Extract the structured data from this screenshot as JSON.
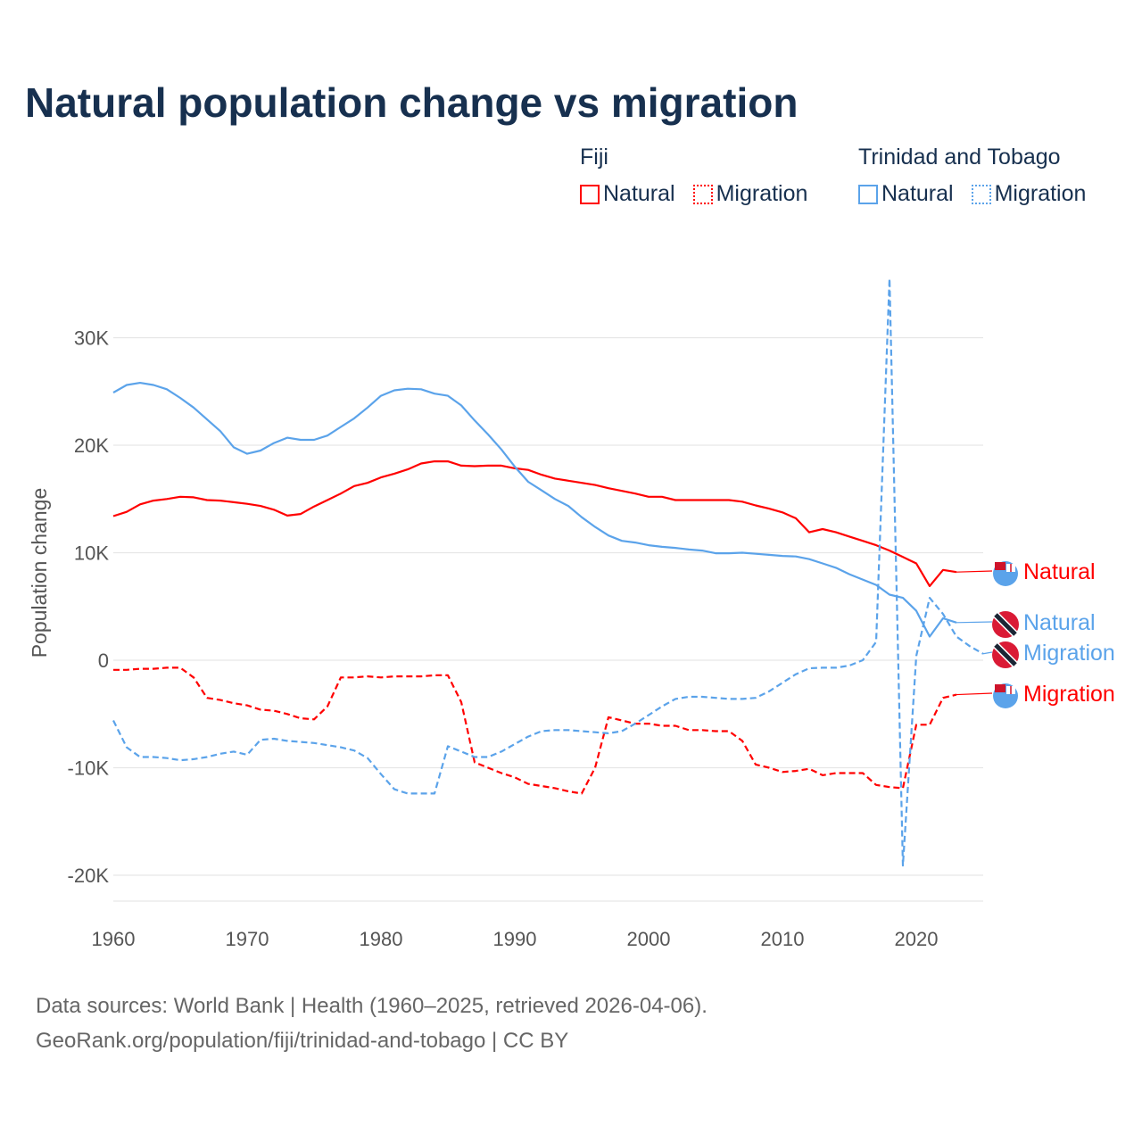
{
  "title": "Natural population change vs migration",
  "legend": {
    "groups": [
      {
        "name": "Fiji",
        "items": [
          "Natural",
          "Migration"
        ],
        "color": "#ff0000"
      },
      {
        "name": "Trinidad and Tobago",
        "items": [
          "Natural",
          "Migration"
        ],
        "color": "#5ba3ea"
      }
    ]
  },
  "source": {
    "line1": "Data sources: World Bank | Health (1960–2025, retrieved 2026-04-06).",
    "line2": "GeoRank.org/population/fiji/trinidad-and-tobago | CC BY"
  },
  "chart_data": {
    "type": "line",
    "title": "Natural population change vs migration",
    "xlabel": "",
    "ylabel": "Population change",
    "xlim": [
      1960,
      2025
    ],
    "ylim": [
      -20000,
      30000
    ],
    "x_ticks": [
      1960,
      1970,
      1980,
      1990,
      2000,
      2010,
      2020
    ],
    "y_ticks": [
      {
        "v": 30000,
        "label": "30K"
      },
      {
        "v": 20000,
        "label": "20K"
      },
      {
        "v": 10000,
        "label": "10K"
      },
      {
        "v": 0,
        "label": "0"
      },
      {
        "v": -10000,
        "label": "-10K"
      },
      {
        "v": -20000,
        "label": "-20K"
      }
    ],
    "grid": true,
    "series": [
      {
        "name": "Fiji Natural",
        "label": "Natural",
        "country": "Fiji",
        "color": "#ff0000",
        "dash": false,
        "start": 1960,
        "values": [
          13400,
          13800,
          14500,
          14850,
          15000,
          15200,
          15150,
          14900,
          14850,
          14700,
          14550,
          14350,
          14000,
          13450,
          13600,
          14300,
          14900,
          15500,
          16200,
          16500,
          17000,
          17350,
          17750,
          18300,
          18500,
          18500,
          18100,
          18050,
          18100,
          18100,
          17850,
          17700,
          17250,
          16900,
          16700,
          16500,
          16300,
          16000,
          15750,
          15500,
          15200,
          15200,
          14900,
          14900,
          14900,
          14900,
          14900,
          14750,
          14400,
          14100,
          13750,
          13200,
          11900,
          12200,
          11900,
          11500,
          11100,
          10700,
          10200,
          9600,
          9000,
          6900,
          8400,
          8200
        ]
      },
      {
        "name": "Fiji Migration",
        "label": "Migration",
        "country": "Fiji",
        "color": "#ff0000",
        "dash": true,
        "start": 1960,
        "values": [
          -900,
          -900,
          -800,
          -800,
          -700,
          -700,
          -1600,
          -3500,
          -3700,
          -4000,
          -4200,
          -4600,
          -4700,
          -5000,
          -5400,
          -5500,
          -4300,
          -1600,
          -1600,
          -1500,
          -1600,
          -1500,
          -1500,
          -1500,
          -1400,
          -1400,
          -3900,
          -9500,
          -10000,
          -10500,
          -10900,
          -11500,
          -11700,
          -11900,
          -12200,
          -12400,
          -10000,
          -5300,
          -5600,
          -5900,
          -5900,
          -6100,
          -6100,
          -6500,
          -6500,
          -6600,
          -6600,
          -7500,
          -9700,
          -10000,
          -10400,
          -10300,
          -10100,
          -10700,
          -10500,
          -10500,
          -10500,
          -11600,
          -11800,
          -11900,
          -6000,
          -6000,
          -3500,
          -3200
        ]
      },
      {
        "name": "Trinidad and Tobago Natural",
        "label": "Natural",
        "country": "Trinidad and Tobago",
        "color": "#5ba3ea",
        "dash": false,
        "start": 1960,
        "values": [
          24900,
          25600,
          25800,
          25600,
          25200,
          24400,
          23500,
          22400,
          21300,
          19800,
          19200,
          19500,
          20200,
          20700,
          20500,
          20500,
          20900,
          21700,
          22500,
          23500,
          24600,
          25100,
          25250,
          25200,
          24800,
          24600,
          23700,
          22300,
          21000,
          19600,
          18000,
          16600,
          15800,
          15000,
          14350,
          13300,
          12400,
          11600,
          11100,
          10950,
          10700,
          10550,
          10450,
          10300,
          10200,
          9950,
          9950,
          10000,
          9900,
          9800,
          9700,
          9650,
          9400,
          9000,
          8600,
          8000,
          7500,
          7000,
          6100,
          5800,
          4600,
          2200,
          3900,
          3500
        ]
      },
      {
        "name": "Trinidad and Tobago Migration",
        "label": "Migration",
        "country": "Trinidad and Tobago",
        "color": "#5ba3ea",
        "dash": true,
        "start": 1960,
        "values": [
          -5600,
          -8100,
          -9000,
          -9000,
          -9100,
          -9300,
          -9200,
          -9000,
          -8700,
          -8500,
          -8800,
          -7400,
          -7300,
          -7500,
          -7600,
          -7700,
          -7900,
          -8100,
          -8400,
          -9100,
          -10600,
          -12000,
          -12400,
          -12400,
          -12400,
          -8000,
          -8500,
          -9000,
          -9000,
          -8500,
          -7800,
          -7100,
          -6600,
          -6500,
          -6500,
          -6600,
          -6700,
          -6800,
          -6600,
          -5900,
          -5100,
          -4300,
          -3600,
          -3400,
          -3400,
          -3500,
          -3600,
          -3600,
          -3500,
          -2900,
          -2100,
          -1300,
          -750,
          -700,
          -700,
          -500,
          0,
          1700,
          35500,
          -19100,
          400,
          5800,
          4300,
          2200,
          1300,
          600
        ]
      }
    ]
  }
}
